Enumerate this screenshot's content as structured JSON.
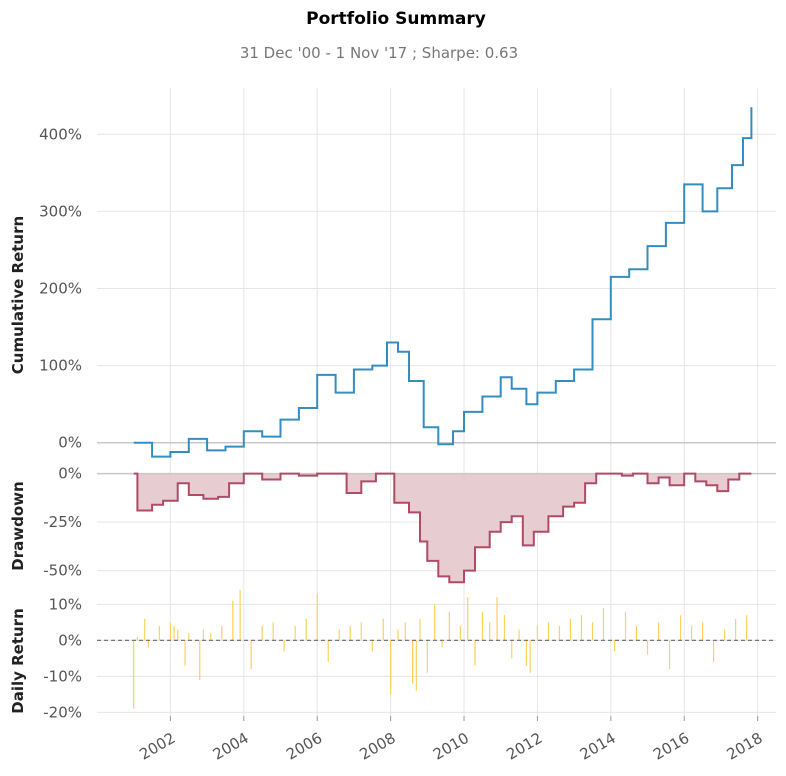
{
  "title": "Portfolio Summary",
  "subtitle": "31 Dec '00 -  1 Nov '17 ;  Sharpe: 0.63",
  "colors": {
    "cumulative": "#348dc1",
    "drawdown_line": "#af4b64",
    "drawdown_fill": "#e4c6cd",
    "daily": "#fbd25a",
    "zero_line": "#c8c8c8",
    "grid": "#e6e6e6"
  },
  "chart_data": [
    {
      "type": "line",
      "ylabel": "Cumulative Return",
      "yticks": [
        "0%",
        "100%",
        "200%",
        "300%",
        "400%"
      ],
      "ytick_values": [
        0,
        100,
        200,
        300,
        400
      ],
      "ylim": [
        -25,
        460
      ],
      "series": [
        {
          "x": [
            2001.0,
            2001.5,
            2002.0,
            2002.5,
            2003.0,
            2003.5,
            2004.0,
            2004.5,
            2005.0,
            2005.5,
            2006.0,
            2006.5,
            2007.0,
            2007.5,
            2007.9,
            2008.2,
            2008.5,
            2008.9,
            2009.3,
            2009.7,
            2010.0,
            2010.5,
            2011.0,
            2011.3,
            2011.7,
            2012.0,
            2012.5,
            2013.0,
            2013.5,
            2014.0,
            2014.5,
            2015.0,
            2015.5,
            2016.0,
            2016.5,
            2016.9,
            2017.3,
            2017.6,
            2017.83
          ],
          "values": [
            0,
            -18,
            -12,
            5,
            -10,
            -5,
            15,
            8,
            30,
            45,
            88,
            65,
            95,
            100,
            130,
            118,
            80,
            20,
            -2,
            15,
            40,
            60,
            85,
            70,
            50,
            65,
            80,
            95,
            160,
            215,
            225,
            255,
            285,
            335,
            300,
            330,
            360,
            395,
            435
          ]
        }
      ]
    },
    {
      "type": "area",
      "ylabel": "Drawdown",
      "yticks": [
        "0%",
        "-25%",
        "-50%"
      ],
      "ytick_values": [
        0,
        -25,
        -50
      ],
      "ylim": [
        -60,
        6
      ],
      "series": [
        {
          "x": [
            2001.0,
            2001.1,
            2001.5,
            2001.8,
            2002.2,
            2002.5,
            2002.9,
            2003.3,
            2003.6,
            2004.0,
            2004.5,
            2005.0,
            2005.5,
            2006.0,
            2006.4,
            2006.8,
            2007.2,
            2007.6,
            2007.9,
            2008.1,
            2008.5,
            2008.8,
            2009.0,
            2009.3,
            2009.6,
            2010.0,
            2010.3,
            2010.7,
            2011.0,
            2011.3,
            2011.6,
            2011.9,
            2012.3,
            2012.7,
            2013.0,
            2013.3,
            2013.6,
            2014.0,
            2014.3,
            2014.6,
            2015.0,
            2015.3,
            2015.6,
            2016.0,
            2016.3,
            2016.6,
            2016.9,
            2017.2,
            2017.5,
            2017.83
          ],
          "values": [
            0,
            -19,
            -16,
            -14,
            -5,
            -11,
            -13,
            -12,
            -5,
            0,
            -3,
            0,
            -1,
            0,
            0,
            -10,
            -4,
            0,
            0,
            -15,
            -20,
            -35,
            -45,
            -53,
            -56,
            -50,
            -38,
            -30,
            -25,
            -22,
            -37,
            -30,
            -22,
            -17,
            -15,
            -5,
            0,
            0,
            -1,
            0,
            -5,
            -2,
            -6,
            0,
            -4,
            -6,
            -9,
            -3,
            0,
            0
          ]
        }
      ]
    },
    {
      "type": "bar",
      "ylabel": "Daily Return",
      "yticks": [
        "10%",
        "0%",
        "-10%",
        "-20%"
      ],
      "ytick_values": [
        10,
        0,
        -10,
        -20
      ],
      "ylim": [
        -21,
        14
      ],
      "x": [
        2001.0,
        2001.1,
        2001.3,
        2001.4,
        2001.7,
        2002.0,
        2002.1,
        2002.2,
        2002.4,
        2002.5,
        2002.8,
        2002.9,
        2003.1,
        2003.4,
        2003.7,
        2003.9,
        2004.2,
        2004.5,
        2004.8,
        2005.1,
        2005.4,
        2005.7,
        2006.0,
        2006.3,
        2006.6,
        2006.9,
        2007.2,
        2007.5,
        2007.8,
        2008.0,
        2008.2,
        2008.4,
        2008.6,
        2008.7,
        2008.8,
        2009.0,
        2009.2,
        2009.4,
        2009.6,
        2009.9,
        2010.1,
        2010.3,
        2010.5,
        2010.7,
        2010.9,
        2011.1,
        2011.3,
        2011.5,
        2011.7,
        2011.8,
        2012.0,
        2012.3,
        2012.6,
        2012.9,
        2013.2,
        2013.5,
        2013.8,
        2014.1,
        2014.4,
        2014.7,
        2015.0,
        2015.3,
        2015.6,
        2015.9,
        2016.2,
        2016.5,
        2016.8,
        2017.1,
        2017.4,
        2017.7
      ],
      "values": [
        -19,
        1,
        6,
        -2,
        4,
        5,
        4,
        3,
        -7,
        2,
        -11,
        3,
        2,
        4,
        11,
        14,
        -8,
        4,
        5,
        -3,
        4,
        6,
        13,
        -6,
        3,
        4,
        5,
        -3,
        6,
        -15,
        3,
        5,
        -12,
        -14,
        6,
        -9,
        10,
        -2,
        8,
        4,
        12,
        -7,
        8,
        5,
        12,
        7,
        -5,
        3,
        -7,
        -9,
        4,
        5,
        4,
        6,
        7,
        5,
        9,
        -3,
        8,
        4,
        -4,
        5,
        -8,
        7,
        4,
        5,
        -6,
        3,
        6,
        7
      ],
      "xtick_labels": [
        "2002",
        "2004",
        "2006",
        "2008",
        "2010",
        "2012",
        "2014",
        "2016",
        "2018"
      ],
      "xtick_values": [
        2002,
        2004,
        2006,
        2008,
        2010,
        2012,
        2014,
        2016,
        2018
      ],
      "xlim": [
        2000.0,
        2018.5
      ]
    }
  ]
}
